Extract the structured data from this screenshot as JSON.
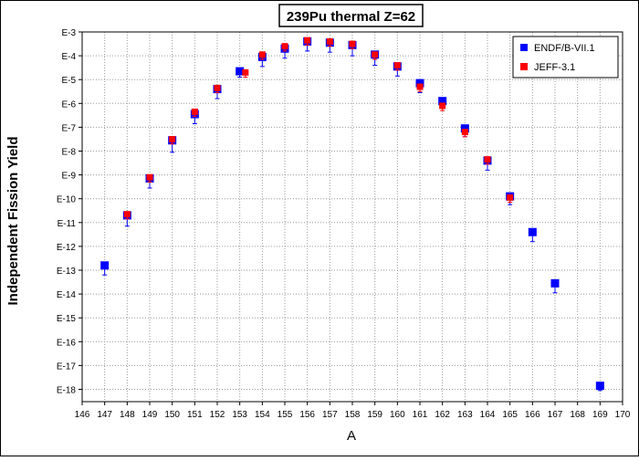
{
  "chart_data": {
    "type": "scatter",
    "title": "239Pu thermal Z=62",
    "xlabel": "A",
    "ylabel": "Independent Fission Yield",
    "xlim": [
      146,
      170
    ],
    "ylim": [
      -18.5,
      -3
    ],
    "y_scale": "log",
    "grid": true,
    "legend_position": "top-right",
    "x_ticks": [
      "146",
      "147",
      "148",
      "149",
      "150",
      "151",
      "152",
      "153",
      "154",
      "155",
      "156",
      "157",
      "158",
      "159",
      "160",
      "161",
      "162",
      "163",
      "164",
      "165",
      "166",
      "167",
      "168",
      "169",
      "170"
    ],
    "y_ticks": [
      "E-3",
      "E-4",
      "E-5",
      "E-6",
      "E-7",
      "E-8",
      "E-9",
      "E-10",
      "E-11",
      "E-12",
      "E-13",
      "E-14",
      "E-15",
      "E-16",
      "E-17",
      "E-18"
    ],
    "series": [
      {
        "name": "ENDF/B-VII.1",
        "color": "#0000ff",
        "x": [
          147,
          148,
          149,
          150,
          151,
          152,
          153,
          154,
          155,
          156,
          157,
          158,
          159,
          160,
          161,
          162,
          163,
          164,
          165,
          166,
          167,
          169
        ],
        "y": [
          -12.8,
          -10.7,
          -9.15,
          -7.55,
          -6.45,
          -5.4,
          -4.65,
          -4.05,
          -3.7,
          -3.4,
          -3.45,
          -3.55,
          -3.95,
          -4.45,
          -5.15,
          -5.9,
          -7.05,
          -8.4,
          -9.9,
          -11.4,
          -13.55,
          -17.85
        ],
        "err_low": [
          0.4,
          0.45,
          0.4,
          0.5,
          0.4,
          0.4,
          0.25,
          0.4,
          0.4,
          0.4,
          0.4,
          0.45,
          0.45,
          0.4,
          0.4,
          0.3,
          0.35,
          0.4,
          0.35,
          0.4,
          0.4,
          0.2
        ]
      },
      {
        "name": "JEFF-3.1",
        "color": "#ff0000",
        "x": [
          148,
          149,
          150,
          151,
          152,
          153.25,
          154,
          155,
          156,
          157,
          158,
          159,
          160,
          161,
          162,
          163,
          164,
          165
        ],
        "y": [
          -10.65,
          -9.1,
          -7.5,
          -6.35,
          -5.35,
          -4.7,
          -3.95,
          -3.6,
          -3.35,
          -3.4,
          -3.5,
          -3.95,
          -4.4,
          -5.3,
          -6.1,
          -7.2,
          -8.35,
          -9.95
        ],
        "err_low": [
          0.2,
          0.2,
          0.2,
          0.2,
          0.2,
          0.2,
          0.2,
          0.2,
          0.2,
          0.2,
          0.2,
          0.2,
          0.2,
          0.2,
          0.2,
          0.2,
          0.2,
          0.2
        ]
      }
    ]
  }
}
